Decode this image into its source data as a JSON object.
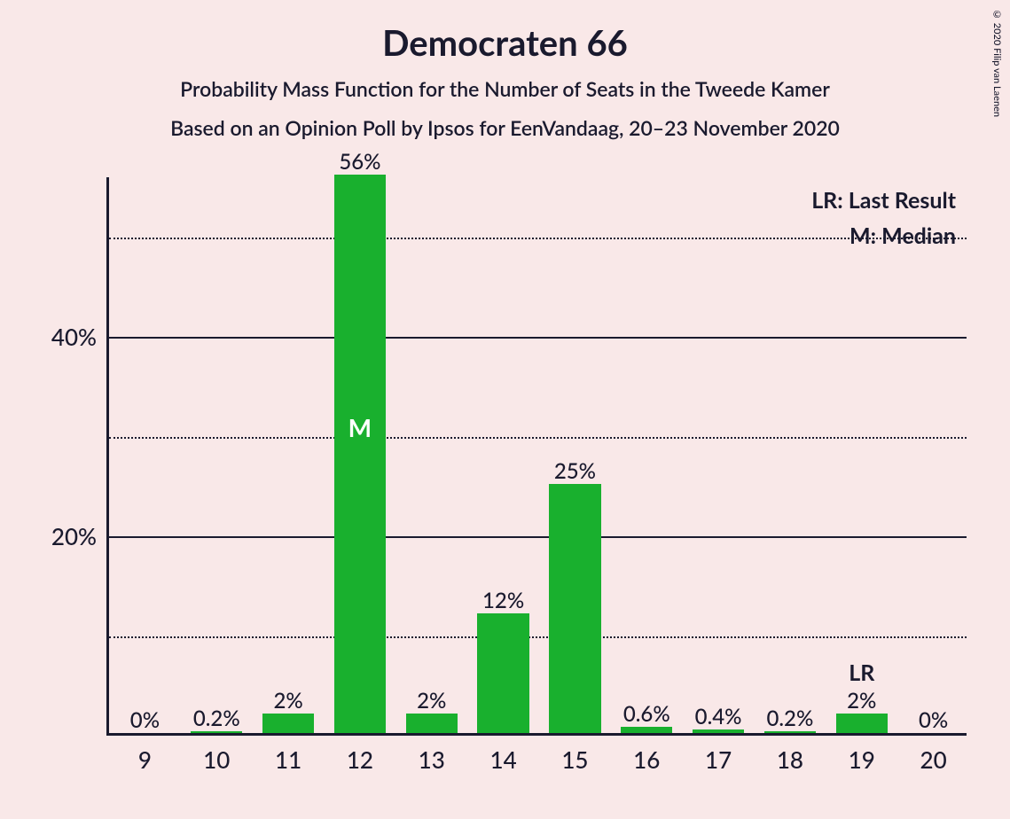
{
  "copyright": "© 2020 Filip van Laenen",
  "title": "Democraten 66",
  "subtitle": "Probability Mass Function for the Number of Seats in the Tweede Kamer",
  "subtitle2": "Based on an Opinion Poll by Ipsos for EenVandaag, 20–23 November 2020",
  "legend": {
    "lr": "LR: Last Result",
    "m": "M: Median"
  },
  "chart": {
    "type": "bar",
    "bar_color": "#19b02e",
    "background_color": "#f9e8e8",
    "axis_color": "#1a1a2e",
    "text_color": "#1a1a2e",
    "marker_text_color": "#ffffff",
    "ylim": [
      0,
      56
    ],
    "ytick_major": [
      20,
      40
    ],
    "ytick_minor": [
      10,
      30,
      50
    ],
    "ytick_labels": [
      "20%",
      "40%"
    ],
    "categories": [
      "9",
      "10",
      "11",
      "12",
      "13",
      "14",
      "15",
      "16",
      "17",
      "18",
      "19",
      "20"
    ],
    "values": [
      0,
      0.2,
      2,
      56,
      2,
      12,
      25,
      0.6,
      0.4,
      0.2,
      2,
      0
    ],
    "value_labels": [
      "0%",
      "0.2%",
      "2%",
      "56%",
      "2%",
      "12%",
      "25%",
      "0.6%",
      "0.4%",
      "0.2%",
      "2%",
      "0%"
    ],
    "median_index": 3,
    "median_marker": "M",
    "lr_index": 10,
    "lr_marker": "LR",
    "bar_width_ratio": 0.72,
    "label_fontsize": 24,
    "tick_fontsize": 26,
    "title_fontsize": 40,
    "subtitle_fontsize": 23
  }
}
